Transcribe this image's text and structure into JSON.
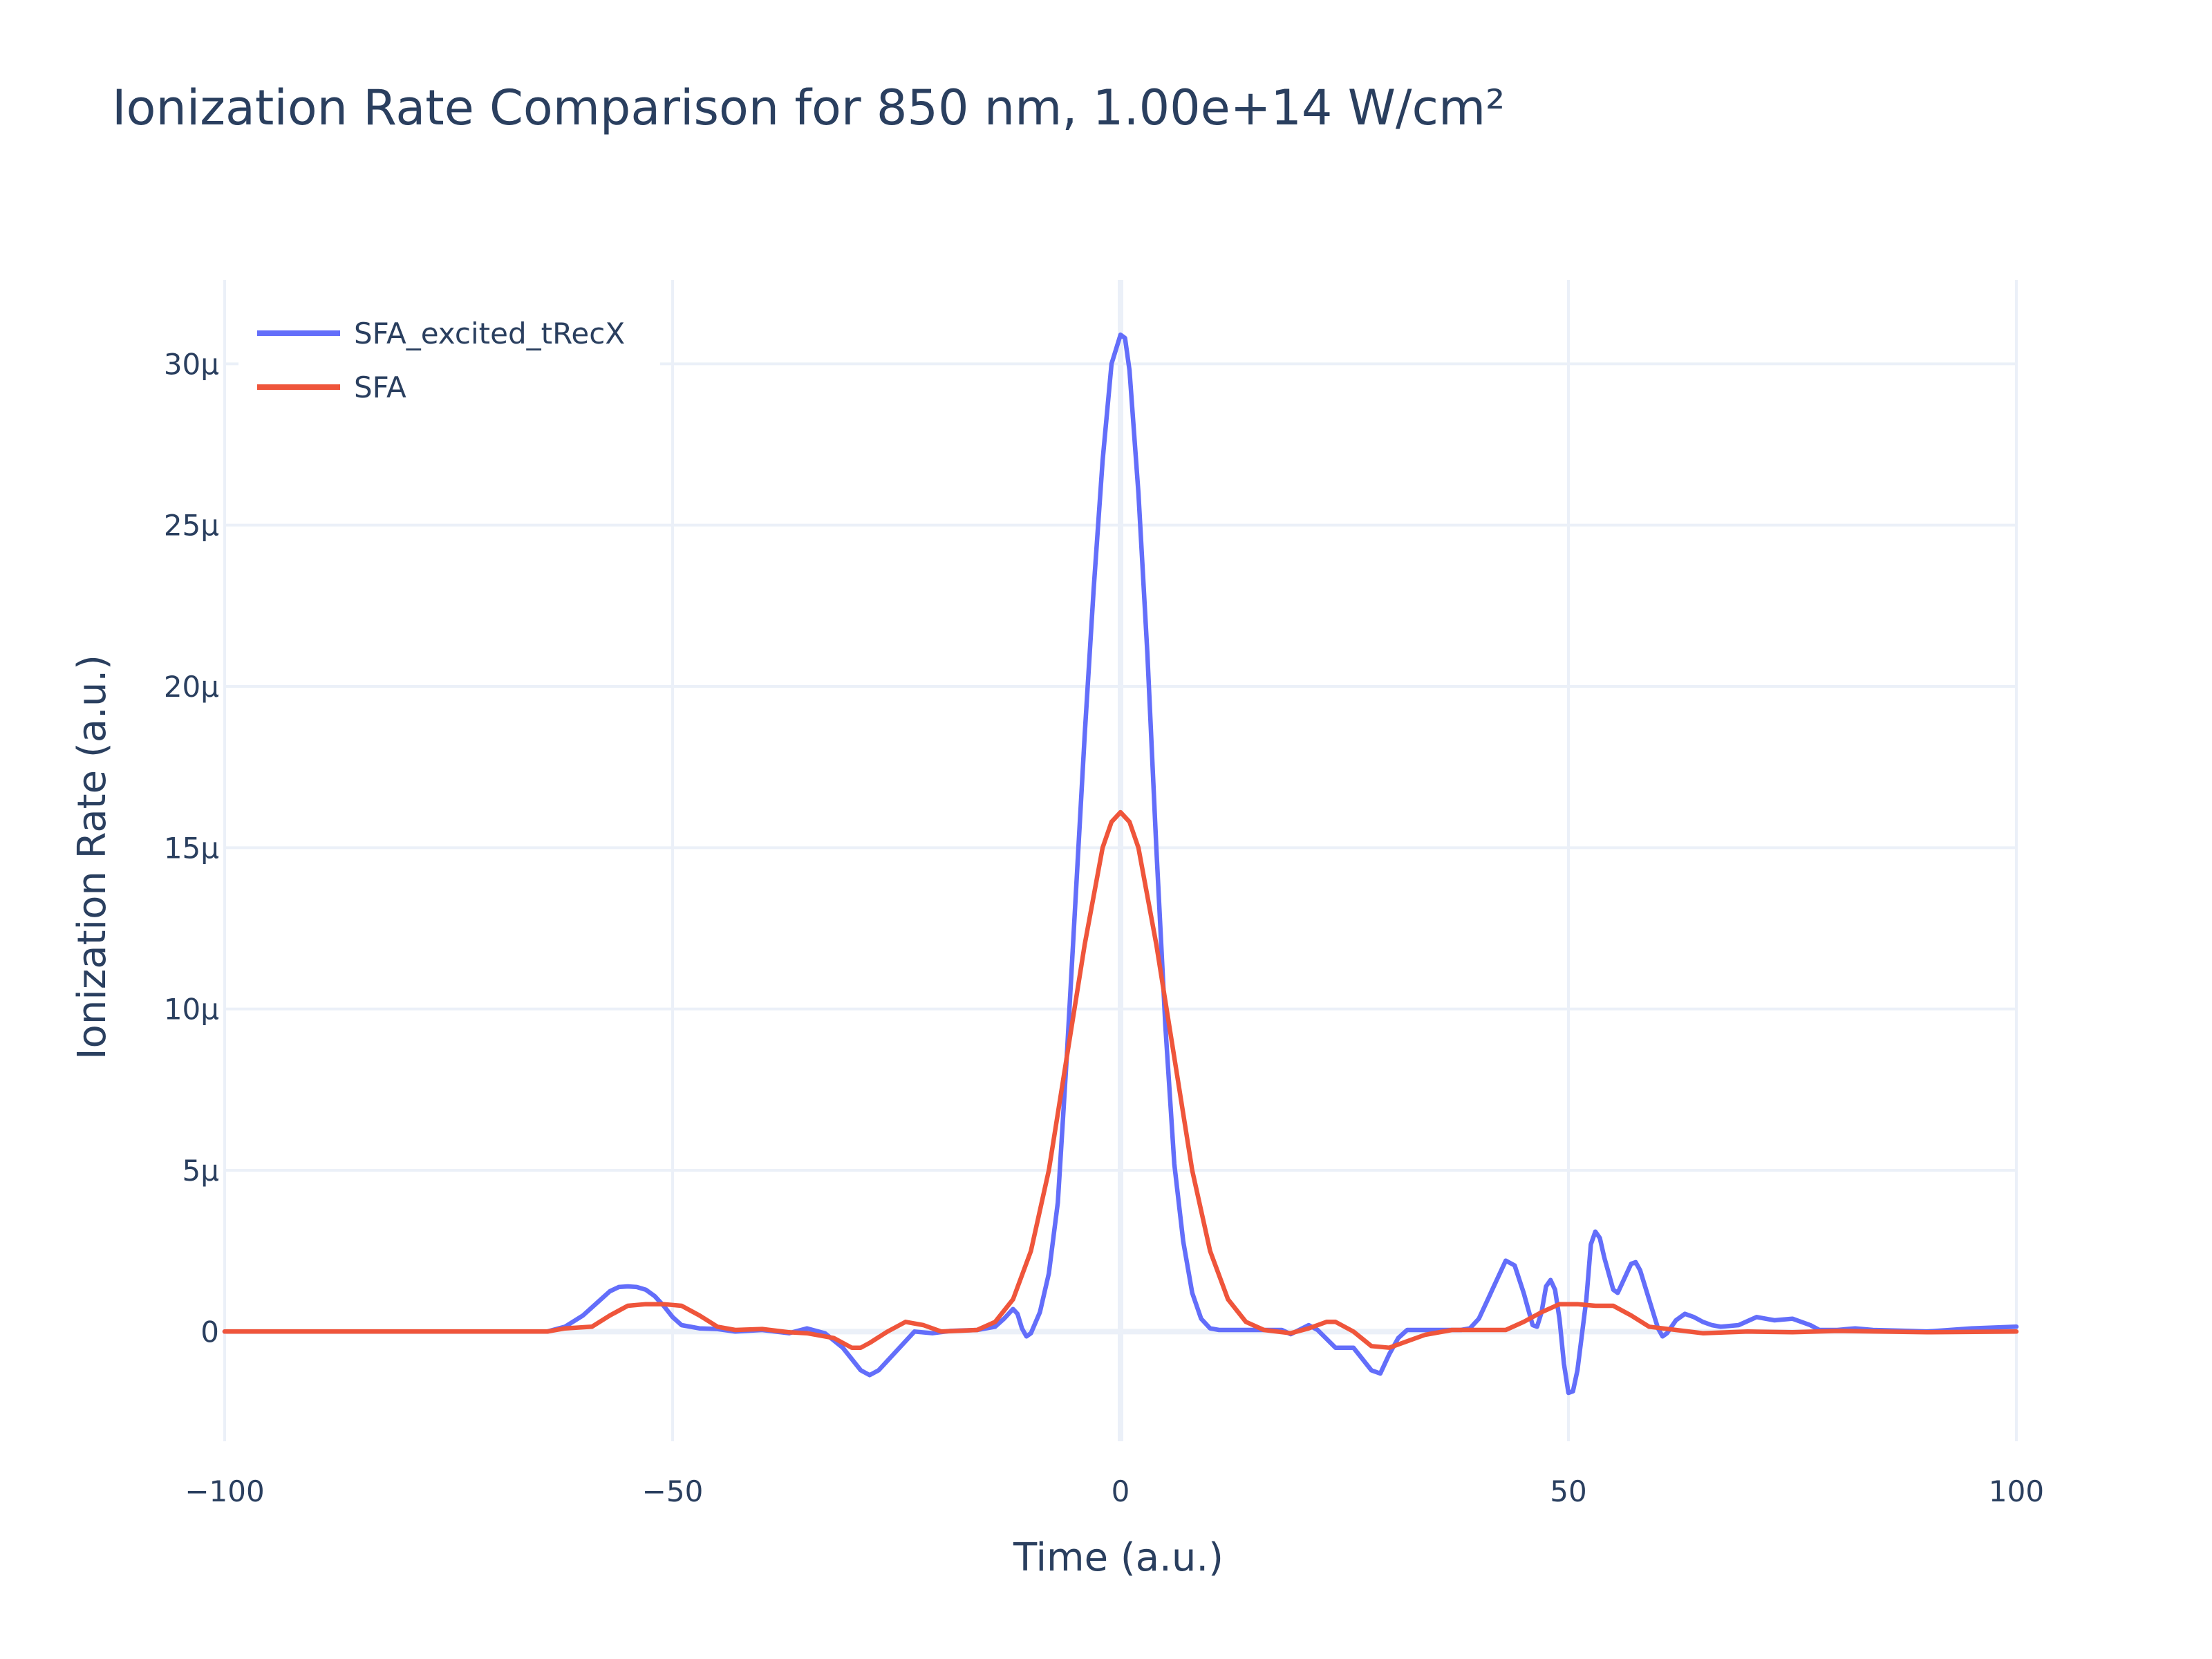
{
  "chart_data": {
    "type": "line",
    "title": "Ionization Rate Comparison for 850 nm, 1.00e+14 W/cm²",
    "xlabel": "Time (a.u.)",
    "ylabel": "Ionization Rate (a.u.)",
    "xlim": [
      -100,
      100
    ],
    "ylim": [
      -3.4e-06,
      3.26e-05
    ],
    "x_ticks": [
      -100,
      -50,
      0,
      50,
      100
    ],
    "x_tick_labels": [
      "−100",
      "−50",
      "0",
      "50",
      "100"
    ],
    "y_ticks": [
      0,
      5e-06,
      1e-05,
      1.5e-05,
      2e-05,
      2.5e-05,
      3e-05
    ],
    "y_tick_labels": [
      "0",
      "5μ",
      "10μ",
      "15μ",
      "20μ",
      "25μ",
      "30μ"
    ],
    "grid": true,
    "legend_position": "top-left",
    "series": [
      {
        "name": "SFA_excited_tRecX",
        "color": "#636efa",
        "points": [
          [
            -100,
            0
          ],
          [
            -64,
            0
          ],
          [
            -62,
            1.5e-07
          ],
          [
            -60,
            5e-07
          ],
          [
            -58,
            1e-06
          ],
          [
            -57,
            1.25e-06
          ],
          [
            -56,
            1.38e-06
          ],
          [
            -55,
            1.4e-06
          ],
          [
            -54,
            1.38e-06
          ],
          [
            -53,
            1.3e-06
          ],
          [
            -52,
            1.1e-06
          ],
          [
            -51,
            8e-07
          ],
          [
            -50,
            4.5e-07
          ],
          [
            -49,
            2e-07
          ],
          [
            -47,
            1e-07
          ],
          [
            -45,
            8e-08
          ],
          [
            -43,
            0.0
          ],
          [
            -40,
            5e-08
          ],
          [
            -37,
            -5e-08
          ],
          [
            -35,
            1e-07
          ],
          [
            -33,
            -5e-08
          ],
          [
            -31,
            -5e-07
          ],
          [
            -29,
            -1.2e-06
          ],
          [
            -28,
            -1.35e-06
          ],
          [
            -27,
            -1.2e-06
          ],
          [
            -25,
            -6e-07
          ],
          [
            -23,
            0.0
          ],
          [
            -21,
            -5e-08
          ],
          [
            -19,
            2e-08
          ],
          [
            -16,
            5e-08
          ],
          [
            -14,
            1.5e-07
          ],
          [
            -13,
            4e-07
          ],
          [
            -12,
            7e-07
          ],
          [
            -11.5,
            5.5e-07
          ],
          [
            -11,
            1e-07
          ],
          [
            -10.5,
            -1.5e-07
          ],
          [
            -10,
            -5e-08
          ],
          [
            -9,
            6e-07
          ],
          [
            -8,
            1.8e-06
          ],
          [
            -7,
            4e-06
          ],
          [
            -6,
            8.5e-06
          ],
          [
            -5,
            1.35e-05
          ],
          [
            -4,
            1.85e-05
          ],
          [
            -3,
            2.3e-05
          ],
          [
            -2,
            2.7e-05
          ],
          [
            -1,
            3e-05
          ],
          [
            0,
            3.09e-05
          ],
          [
            0.5,
            3.08e-05
          ],
          [
            1,
            2.98e-05
          ],
          [
            2,
            2.6e-05
          ],
          [
            3,
            2.1e-05
          ],
          [
            4,
            1.5e-05
          ],
          [
            5,
            9.5e-06
          ],
          [
            6,
            5.2e-06
          ],
          [
            7,
            2.8e-06
          ],
          [
            8,
            1.2e-06
          ],
          [
            9,
            4e-07
          ],
          [
            10,
            1e-07
          ],
          [
            11,
            5e-08
          ],
          [
            14,
            5e-08
          ],
          [
            18,
            5e-08
          ],
          [
            19,
            -8e-08
          ],
          [
            21,
            2e-07
          ],
          [
            22,
            5e-08
          ],
          [
            24,
            -5e-07
          ],
          [
            26,
            -5e-07
          ],
          [
            28,
            -1.2e-06
          ],
          [
            29,
            -1.3e-06
          ],
          [
            30,
            -7e-07
          ],
          [
            31,
            -2e-07
          ],
          [
            32,
            5e-08
          ],
          [
            34,
            5e-08
          ],
          [
            36,
            5e-08
          ],
          [
            38,
            5e-08
          ],
          [
            39,
            1e-07
          ],
          [
            40,
            4e-07
          ],
          [
            41,
            1e-06
          ],
          [
            42,
            1.6e-06
          ],
          [
            43,
            2.2e-06
          ],
          [
            44,
            2.05e-06
          ],
          [
            45,
            1.2e-06
          ],
          [
            46,
            2e-07
          ],
          [
            46.5,
            1.5e-07
          ],
          [
            47,
            6e-07
          ],
          [
            47.5,
            1.4e-06
          ],
          [
            48,
            1.6e-06
          ],
          [
            48.5,
            1.3e-06
          ],
          [
            49,
            4e-07
          ],
          [
            49.5,
            -1e-06
          ],
          [
            50,
            -1.9e-06
          ],
          [
            50.5,
            -1.85e-06
          ],
          [
            51,
            -1.2e-06
          ],
          [
            52,
            1e-06
          ],
          [
            52.5,
            2.7e-06
          ],
          [
            53,
            3.1e-06
          ],
          [
            53.5,
            2.9e-06
          ],
          [
            54,
            2.3e-06
          ],
          [
            55,
            1.3e-06
          ],
          [
            55.5,
            1.2e-06
          ],
          [
            56,
            1.5e-06
          ],
          [
            57,
            2.1e-06
          ],
          [
            57.5,
            2.15e-06
          ],
          [
            58,
            1.9e-06
          ],
          [
            59,
            1e-06
          ],
          [
            60,
            1e-07
          ],
          [
            60.5,
            -1.5e-07
          ],
          [
            61,
            -5e-08
          ],
          [
            62,
            3.5e-07
          ],
          [
            63,
            5.5e-07
          ],
          [
            64,
            4.5e-07
          ],
          [
            65,
            3e-07
          ],
          [
            66,
            2e-07
          ],
          [
            67,
            1.5e-07
          ],
          [
            69,
            2e-07
          ],
          [
            71,
            4.5e-07
          ],
          [
            73,
            3.5e-07
          ],
          [
            75,
            4e-07
          ],
          [
            77,
            2e-07
          ],
          [
            78,
            5e-08
          ],
          [
            80,
            5e-08
          ],
          [
            82,
            1e-07
          ],
          [
            84,
            5e-08
          ],
          [
            88,
            2e-08
          ],
          [
            90,
            0.0
          ],
          [
            95,
            1e-07
          ],
          [
            100,
            1.5e-07
          ]
        ]
      },
      {
        "name": "SFA",
        "color": "#ef553b",
        "points": [
          [
            -100,
            0
          ],
          [
            -64,
            0
          ],
          [
            -62,
            1e-07
          ],
          [
            -59,
            1.5e-07
          ],
          [
            -57,
            5e-07
          ],
          [
            -55,
            8e-07
          ],
          [
            -53,
            8.5e-07
          ],
          [
            -51,
            8.5e-07
          ],
          [
            -49,
            8e-07
          ],
          [
            -47,
            5e-07
          ],
          [
            -45,
            1.5e-07
          ],
          [
            -43,
            5e-08
          ],
          [
            -40,
            8e-08
          ],
          [
            -37,
            -2e-08
          ],
          [
            -35,
            -5e-08
          ],
          [
            -32,
            -2e-07
          ],
          [
            -30,
            -5e-07
          ],
          [
            -29,
            -5e-07
          ],
          [
            -28,
            -3.5e-07
          ],
          [
            -26,
            0.0
          ],
          [
            -24,
            3e-07
          ],
          [
            -22,
            2e-07
          ],
          [
            -20,
            0.0
          ],
          [
            -16,
            5e-08
          ],
          [
            -14,
            3e-07
          ],
          [
            -12,
            1e-06
          ],
          [
            -10,
            2.5e-06
          ],
          [
            -8,
            5e-06
          ],
          [
            -6,
            8.5e-06
          ],
          [
            -4,
            1.2e-05
          ],
          [
            -2,
            1.5e-05
          ],
          [
            -1,
            1.58e-05
          ],
          [
            0,
            1.61e-05
          ],
          [
            1,
            1.58e-05
          ],
          [
            2,
            1.5e-05
          ],
          [
            4,
            1.2e-05
          ],
          [
            6,
            8.5e-06
          ],
          [
            8,
            5e-06
          ],
          [
            10,
            2.5e-06
          ],
          [
            12,
            1e-06
          ],
          [
            14,
            3e-07
          ],
          [
            16,
            5e-08
          ],
          [
            19,
            -5e-08
          ],
          [
            21,
            1e-07
          ],
          [
            23,
            3e-07
          ],
          [
            24,
            3e-07
          ],
          [
            26,
            0.0
          ],
          [
            28,
            -4.5e-07
          ],
          [
            30,
            -5e-07
          ],
          [
            32,
            -3e-07
          ],
          [
            34,
            -1e-07
          ],
          [
            37,
            5e-08
          ],
          [
            40,
            5e-08
          ],
          [
            43,
            5e-08
          ],
          [
            45,
            3e-07
          ],
          [
            47,
            6e-07
          ],
          [
            49,
            8.5e-07
          ],
          [
            51,
            8.5e-07
          ],
          [
            53,
            8e-07
          ],
          [
            55,
            8e-07
          ],
          [
            57,
            5e-07
          ],
          [
            59,
            1.5e-07
          ],
          [
            62,
            5e-08
          ],
          [
            65,
            -5e-08
          ],
          [
            70,
            0.0
          ],
          [
            75,
            -2e-08
          ],
          [
            80,
            2e-08
          ],
          [
            90,
            -2e-08
          ],
          [
            100,
            0.0
          ]
        ]
      }
    ]
  }
}
